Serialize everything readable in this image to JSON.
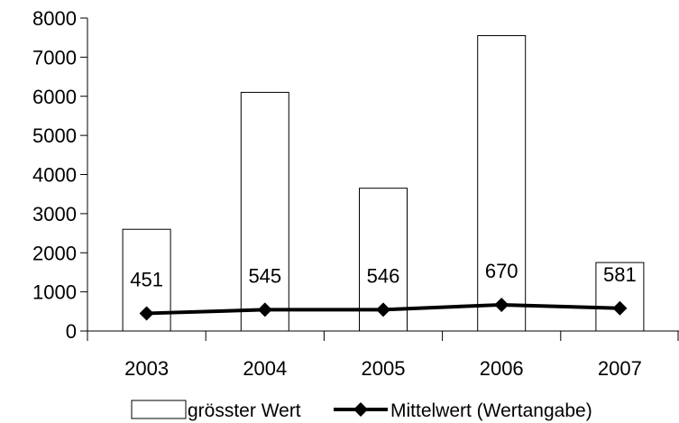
{
  "chart_data": {
    "type": "bar",
    "title": "",
    "xlabel": "",
    "ylabel": "",
    "categories": [
      "2003",
      "2004",
      "2005",
      "2006",
      "2007"
    ],
    "ylim": [
      0,
      8000
    ],
    "yticks": [
      0,
      1000,
      2000,
      3000,
      4000,
      5000,
      6000,
      7000,
      8000
    ],
    "ytick_labels": [
      "0",
      "1000",
      "2000",
      "3000",
      "4000",
      "5000",
      "6000",
      "7000",
      "8000"
    ],
    "grid": false,
    "legend_position": "bottom",
    "series": [
      {
        "name": "grösster Wert",
        "type": "bar",
        "values": [
          2600,
          6100,
          3650,
          7550,
          1750
        ],
        "fill": "#ffffff",
        "stroke": "#000000"
      },
      {
        "name": "Mittelwert (Wertangabe)",
        "type": "line",
        "marker": "diamond",
        "values": [
          451,
          545,
          546,
          670,
          581
        ],
        "data_labels": [
          "451",
          "545",
          "546",
          "670",
          "581"
        ],
        "color": "#000000"
      }
    ]
  }
}
